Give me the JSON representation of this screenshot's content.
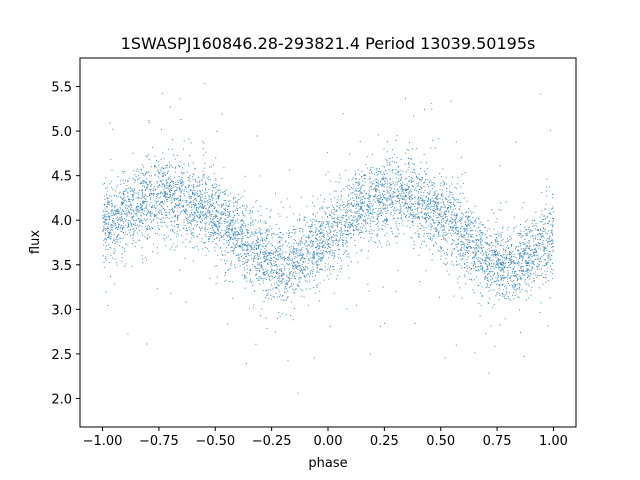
{
  "chart_data": {
    "type": "scatter",
    "title": "1SWASPJ160846.28-293821.4 Period 13039.50195s",
    "xlabel": "phase",
    "ylabel": "flux",
    "xlim": [
      -1.1,
      1.1
    ],
    "ylim": [
      1.68,
      5.82
    ],
    "xticks": [
      -1.0,
      -0.75,
      -0.5,
      -0.25,
      0.0,
      0.25,
      0.5,
      0.75,
      1.0
    ],
    "xtick_labels": [
      "−1.00",
      "−0.75",
      "−0.50",
      "−0.25",
      "0.00",
      "0.25",
      "0.50",
      "0.75",
      "1.00"
    ],
    "yticks": [
      2.0,
      2.5,
      3.0,
      3.5,
      4.0,
      4.5,
      5.0,
      5.5
    ],
    "ytick_labels": [
      "2.0",
      "2.5",
      "3.0",
      "3.5",
      "4.0",
      "4.5",
      "5.0",
      "5.5"
    ],
    "grid": false,
    "marker_color": "#1f77b4",
    "series": [
      {
        "x": [
          -1.0,
          -0.95,
          -0.9,
          -0.85,
          -0.8,
          -0.75,
          -0.7,
          -0.65,
          -0.6,
          -0.55,
          -0.5,
          -0.45,
          -0.4,
          -0.35,
          -0.3,
          -0.25,
          -0.2,
          -0.15,
          -0.1,
          -0.05,
          0.0,
          0.05,
          0.1,
          0.15,
          0.2,
          0.25,
          0.3,
          0.35,
          0.4,
          0.45,
          0.5,
          0.55,
          0.6,
          0.65,
          0.7,
          0.75,
          0.8,
          0.85,
          0.9,
          0.95,
          1.0
        ],
        "y": [
          3.92,
          4.02,
          4.08,
          4.14,
          4.22,
          4.27,
          4.29,
          4.26,
          4.2,
          4.12,
          4.05,
          3.95,
          3.82,
          3.7,
          3.6,
          3.53,
          3.49,
          3.52,
          3.6,
          3.7,
          3.8,
          3.92,
          4.05,
          4.15,
          4.22,
          4.27,
          4.29,
          4.26,
          4.2,
          4.12,
          4.05,
          3.95,
          3.82,
          3.7,
          3.6,
          3.53,
          3.49,
          3.52,
          3.6,
          3.7,
          3.8
        ]
      }
    ]
  }
}
